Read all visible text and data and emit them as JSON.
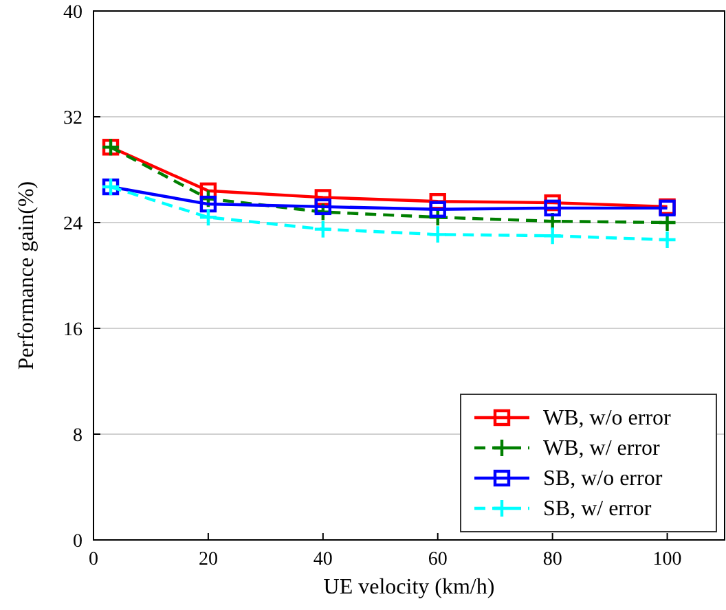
{
  "chart_data": {
    "type": "line",
    "xlabel": "UE velocity (km/h)",
    "ylabel": "Performance gain(%)",
    "x": [
      3,
      20,
      40,
      60,
      80,
      100
    ],
    "xlim": [
      0,
      110
    ],
    "xticks": [
      0,
      20,
      40,
      60,
      80,
      100
    ],
    "ylim": [
      0,
      40
    ],
    "yticks": [
      0,
      8,
      16,
      24,
      32,
      40
    ],
    "grid": "y",
    "legend": "bottom right",
    "series": [
      {
        "name": "WB, w/o error",
        "color": "#ff0000",
        "marker": "square",
        "line_style": "solid",
        "values": [
          29.7,
          26.4,
          25.9,
          25.6,
          25.5,
          25.2
        ]
      },
      {
        "name": "WB, w/ error",
        "color": "#007f00",
        "marker": "cross",
        "line_style": "dashed",
        "values": [
          29.7,
          25.8,
          24.8,
          24.4,
          24.1,
          24.0
        ]
      },
      {
        "name": "SB, w/o error",
        "color": "#0000ff",
        "marker": "square",
        "line_style": "solid",
        "values": [
          26.7,
          25.4,
          25.2,
          25.0,
          25.1,
          25.1
        ]
      },
      {
        "name": "SB, w/ error",
        "color": "#00ffff",
        "marker": "cross",
        "line_style": "dashed",
        "values": [
          26.7,
          24.4,
          23.5,
          23.1,
          23.0,
          22.7
        ]
      }
    ]
  }
}
